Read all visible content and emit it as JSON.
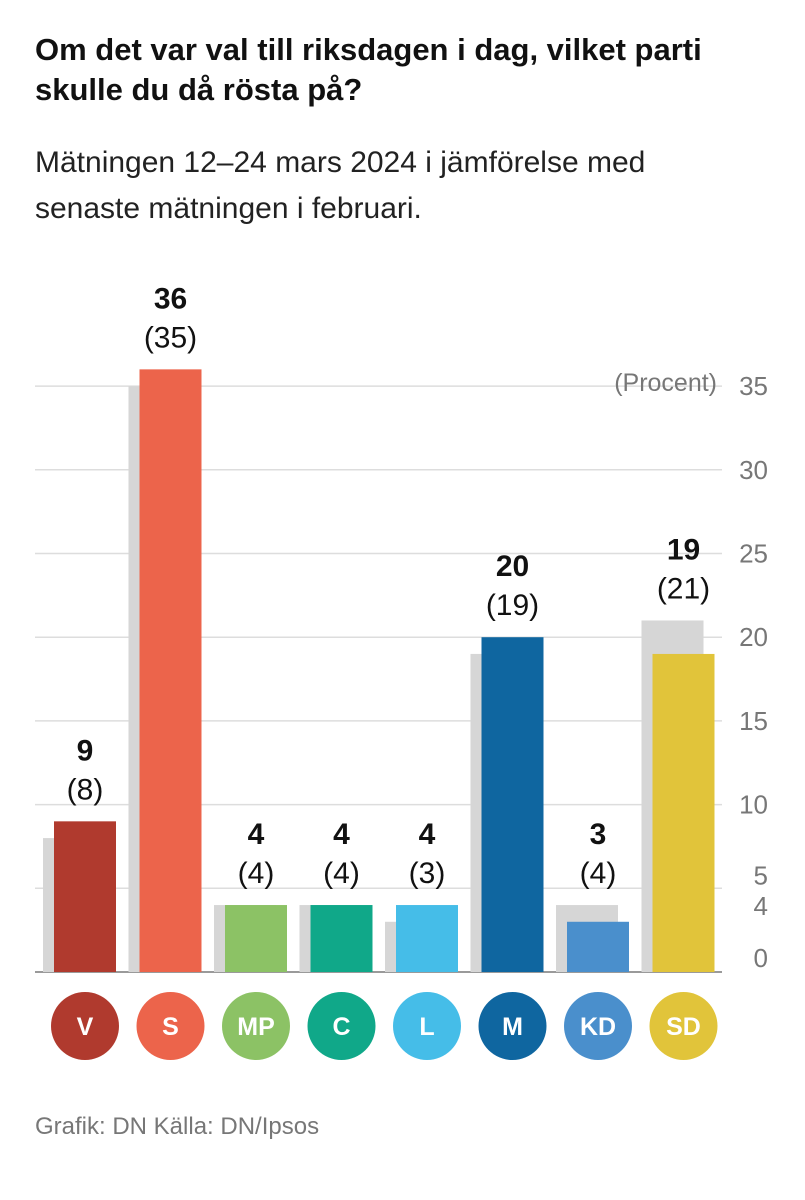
{
  "title": "Om det var val till riksdagen i dag, vilket parti skulle du då rösta på?",
  "subtitle": "Mätningen 12–24 mars 2024 i jämförelse med senaste mätningen i februari.",
  "footer": "Grafik: DN Källa: DN/Ipsos",
  "chart_data": {
    "type": "bar",
    "unit_label": "(Procent)",
    "ylim": [
      0,
      36
    ],
    "yticks": [
      0,
      4,
      5,
      10,
      15,
      20,
      25,
      30,
      35
    ],
    "grid": true,
    "categories": [
      "V",
      "S",
      "MP",
      "C",
      "L",
      "M",
      "KD",
      "SD"
    ],
    "series": [
      {
        "values": [
          9,
          36,
          4,
          4,
          4,
          20,
          3,
          19
        ]
      },
      {
        "values": [
          8,
          35,
          4,
          4,
          3,
          19,
          4,
          21
        ]
      }
    ],
    "current_labels": [
      "9",
      "36",
      "4",
      "4",
      "4",
      "20",
      "3",
      "19"
    ],
    "previous_labels": [
      "(8)",
      "(35)",
      "(4)",
      "(4)",
      "(3)",
      "(19)",
      "(4)",
      "(21)"
    ],
    "colors": [
      "#b03a2e",
      "#ec644b",
      "#8cc265",
      "#10a889",
      "#45bde8",
      "#0f66a0",
      "#4a8fcc",
      "#e1c43a"
    ],
    "previous_color": "#d6d6d6"
  }
}
